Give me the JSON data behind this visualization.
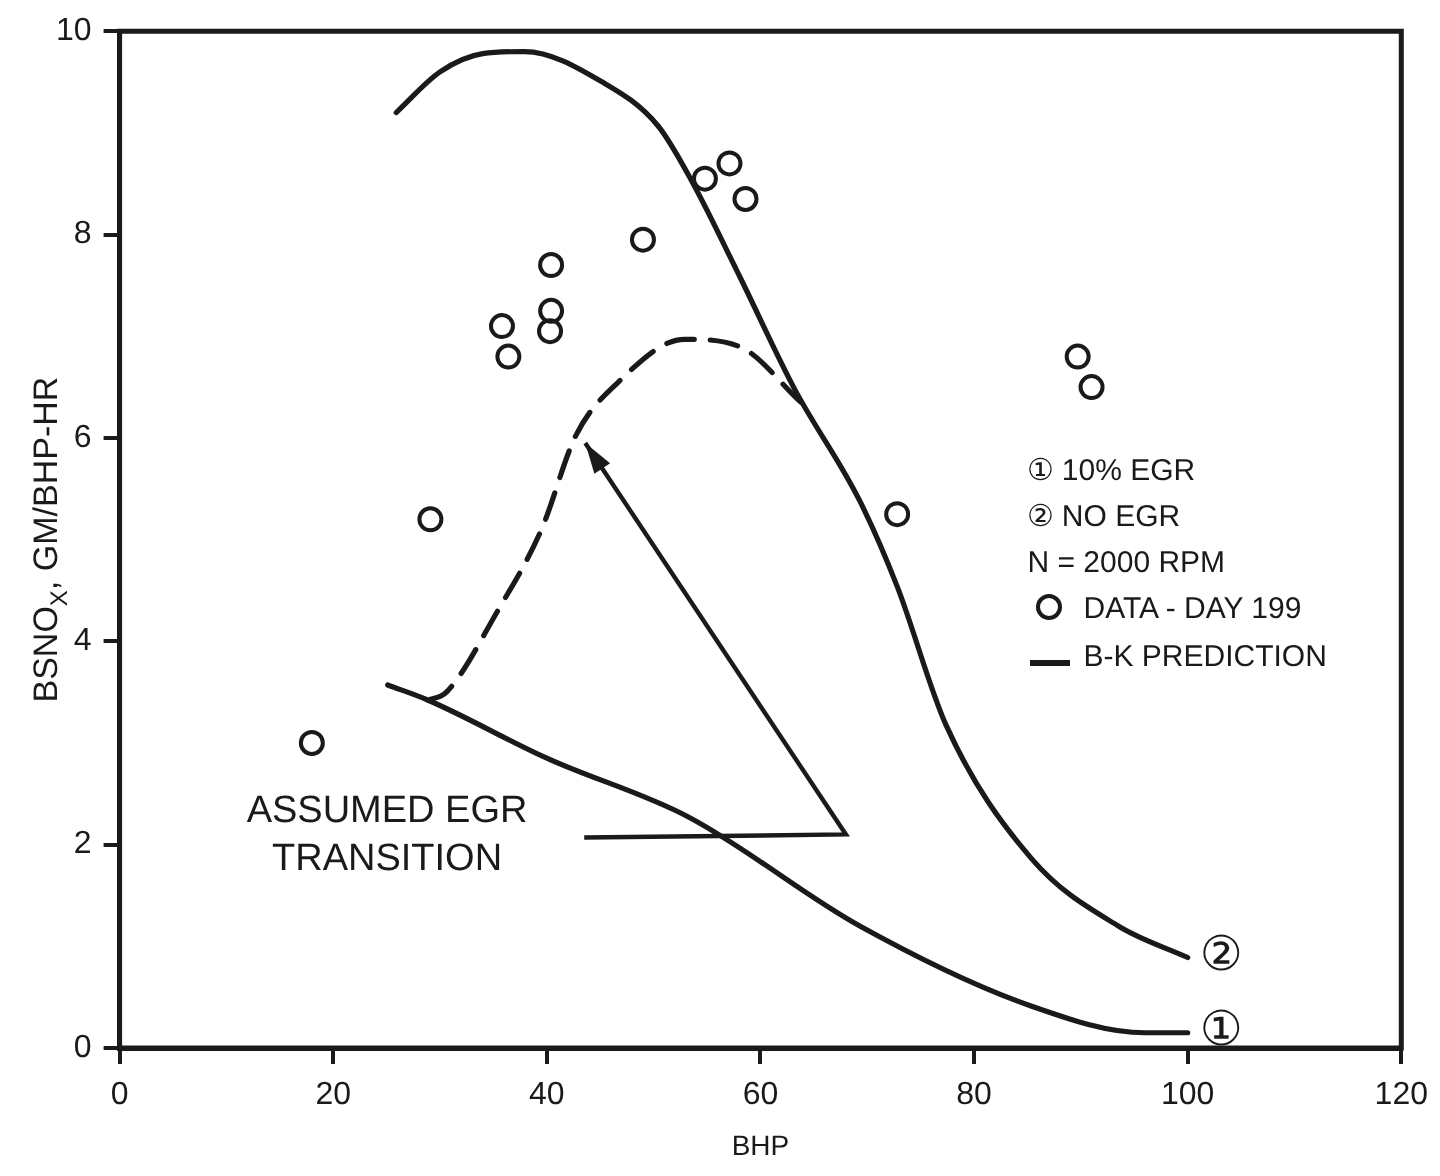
{
  "chart_data": {
    "type": "scatter",
    "xlabel": "BHP",
    "ylabel": "BSNO$_{X}$, GM/BHP-HR",
    "xlim": [
      0,
      120
    ],
    "ylim": [
      0,
      10
    ],
    "xticks": [
      0,
      20,
      40,
      60,
      80,
      100,
      120
    ],
    "yticks": [
      0,
      2,
      4,
      6,
      8,
      10
    ],
    "grid": false,
    "legend": "right",
    "series": [
      {
        "name": "DATA - DAY 199",
        "marker": "circle",
        "color": "#1a1a1a",
        "x": [
          18,
          29.1,
          35.8,
          36.4,
          40.4,
          40.4,
          40.3,
          49,
          54.8,
          57.1,
          58.6,
          72.8,
          89.7,
          91
        ],
        "values": [
          3.0,
          5.2,
          7.1,
          6.8,
          7.7,
          7.25,
          7.05,
          7.95,
          8.55,
          8.7,
          8.35,
          5.25,
          6.8,
          6.5
        ]
      },
      {
        "name": "B-K PREDICTION",
        "type": "line",
        "color": "#1a1a1a",
        "x": [
          25.9,
          30,
          34,
          37.9,
          45.2,
          50.4,
          53.6,
          58,
          63.2,
          69.3,
          72.8,
          77.4,
          85.4,
          93.5,
          100
        ],
        "values": [
          9.2,
          9.6,
          9.78,
          9.8,
          9.5,
          9.07,
          8.52,
          7.6,
          6.48,
          5.38,
          4.54,
          3.17,
          1.86,
          1.2,
          0.89
        ]
      },
      {
        "type": "line",
        "color": "#1a1a1a",
        "x": [
          25.1,
          28.9,
          40,
          53.3,
          69.3,
          85.4,
          96,
          100
        ],
        "values": [
          3.57,
          3.42,
          2.85,
          2.27,
          1.2,
          0.41,
          0.15,
          0.15
        ]
      },
      {
        "type": "line",
        "line_style": "dashed",
        "color": "#1a1a1a",
        "x": [
          28.9,
          30.6,
          35.4,
          39.5,
          42.7,
          46.6,
          52.9,
          58,
          63.8
        ],
        "values": [
          3.42,
          3.5,
          4.3,
          5.1,
          6.02,
          6.54,
          6.97,
          6.9,
          6.35
        ]
      }
    ],
    "annotations": [
      "① 10% EGR",
      "② NO EGR",
      "N = 2000 RPM",
      "ASSUMED EGR TRANSITION",
      {
        "text": "②",
        "x": 100,
        "y": 0.89
      },
      {
        "text": "①",
        "x": 100,
        "y": 0.15
      }
    ]
  }
}
